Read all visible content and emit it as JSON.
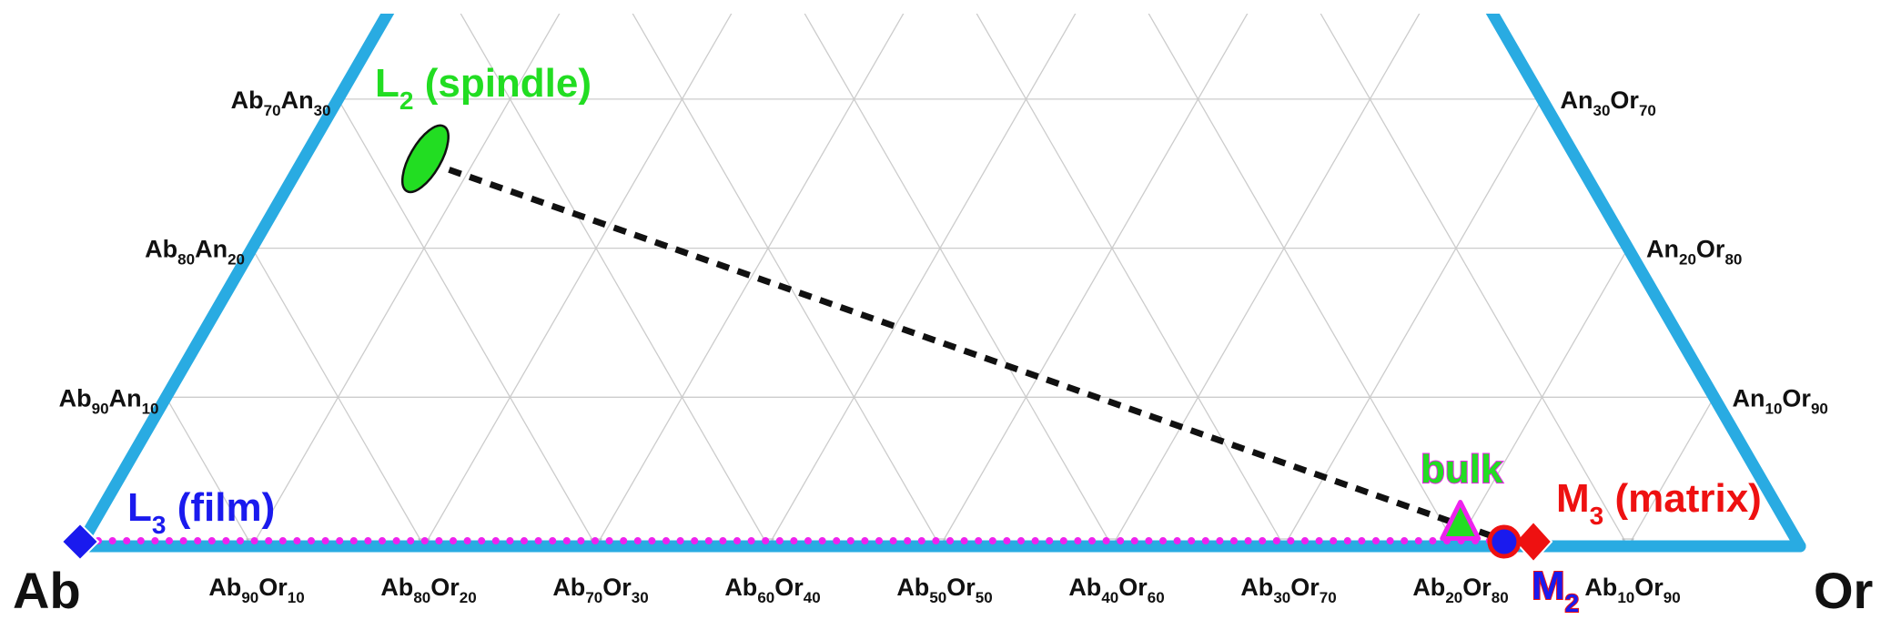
{
  "corners": {
    "left": "Ab",
    "right": "Or"
  },
  "bottom_ticks": [
    {
      "a": "Ab",
      "an": "90",
      "b": "Or",
      "bn": "10"
    },
    {
      "a": "Ab",
      "an": "80",
      "b": "Or",
      "bn": "20"
    },
    {
      "a": "Ab",
      "an": "70",
      "b": "Or",
      "bn": "30"
    },
    {
      "a": "Ab",
      "an": "60",
      "b": "Or",
      "bn": "40"
    },
    {
      "a": "Ab",
      "an": "50",
      "b": "Or",
      "bn": "50"
    },
    {
      "a": "Ab",
      "an": "40",
      "b": "Or",
      "bn": "60"
    },
    {
      "a": "Ab",
      "an": "30",
      "b": "Or",
      "bn": "70"
    },
    {
      "a": "Ab",
      "an": "20",
      "b": "Or",
      "bn": "80"
    },
    {
      "a": "Ab",
      "an": "10",
      "b": "Or",
      "bn": "90"
    }
  ],
  "left_ticks": [
    {
      "a": "Ab",
      "an": "90",
      "b": "An",
      "bn": "10"
    },
    {
      "a": "Ab",
      "an": "80",
      "b": "An",
      "bn": "20"
    },
    {
      "a": "Ab",
      "an": "70",
      "b": "An",
      "bn": "30"
    }
  ],
  "right_ticks": [
    {
      "a": "An",
      "an": "10",
      "b": "Or",
      "bn": "90"
    },
    {
      "a": "An",
      "an": "20",
      "b": "Or",
      "bn": "80"
    },
    {
      "a": "An",
      "an": "30",
      "b": "Or",
      "bn": "70"
    }
  ],
  "points": {
    "L2": {
      "base": "L",
      "sub": "2",
      "text": " (spindle)",
      "color": "#22dd22",
      "Ab": 66.5,
      "An": 26,
      "Or": 7.5
    },
    "L3": {
      "base": "L",
      "sub": "3",
      "text": " (film)",
      "color": "#1a1aee",
      "Ab": 100,
      "An": 0,
      "Or": 0
    },
    "M3": {
      "base": "M",
      "sub": "3",
      "text": " (matrix)",
      "color": "#ee1111",
      "Ab": 15.5,
      "An": 0,
      "Or": 84.5
    },
    "M2": {
      "base": "M",
      "sub": "2",
      "color": "#1a1aee",
      "outline": "#ee1111",
      "Ab": 17.2,
      "An": 0,
      "Or": 82.8
    },
    "bulk": {
      "text": "bulk",
      "color": "#22dd22",
      "outline": "#ee22ee",
      "Ab": 19,
      "An": 1.5,
      "Or": 79.5
    }
  },
  "colors": {
    "frame": "#29abe2",
    "grid": "#cccccc",
    "tie_line": "#111111",
    "dotted_line": "#ee22ee"
  }
}
